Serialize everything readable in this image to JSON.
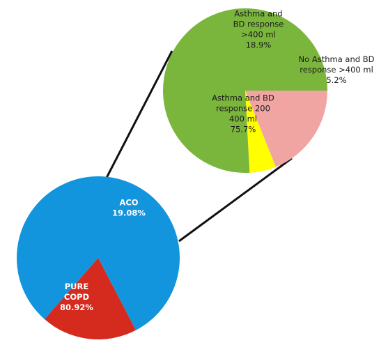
{
  "chart_data": [
    {
      "type": "pie",
      "slices": [
        {
          "lines": [
            "PURE",
            "COPD",
            "80.92%"
          ],
          "value": 80.92,
          "color": "#1295dc",
          "text_style": "white"
        },
        {
          "lines": [
            "ACO",
            "19.08%"
          ],
          "value": 19.08,
          "color": "#d52a1e",
          "text_style": "white"
        }
      ]
    },
    {
      "type": "pie",
      "slices": [
        {
          "lines": [
            "Asthma and",
            "BD response",
            ">400 ml",
            "18.9%"
          ],
          "value": 18.9,
          "color": "#f1a5a3",
          "text_style": "dark"
        },
        {
          "lines": [
            "No Asthma and BD",
            "response >400 ml",
            "5.2%"
          ],
          "value": 5.2,
          "color": "#ffff00",
          "text_style": "dark"
        },
        {
          "lines": [
            "Asthma and BD",
            "response 200",
            "400 ml",
            "75.7%"
          ],
          "value": 75.7,
          "color": "#7ab53c",
          "text_style": "dark"
        }
      ]
    }
  ]
}
